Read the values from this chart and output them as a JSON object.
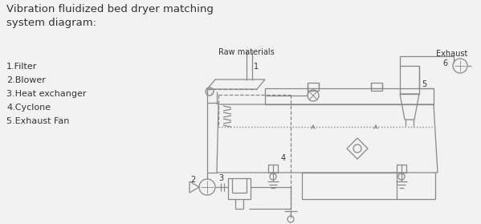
{
  "title_line1": "Vibration fluidized bed dryer matching",
  "title_line2": "system diagram:",
  "legend_items": [
    "1.Filter",
    "2.Blower",
    "3.Heat exchanger",
    "4.Cyclone",
    "5.Exhaust Fan"
  ],
  "labels": {
    "raw_materials": "Raw materials",
    "exhaust": "Exhaust",
    "num1": "1",
    "num2": "2",
    "num3": "3",
    "num4": "4",
    "num5": "5",
    "num6": "6"
  },
  "bg_color": "#f2f2f2",
  "line_color": "#888888",
  "text_color": "#333333"
}
